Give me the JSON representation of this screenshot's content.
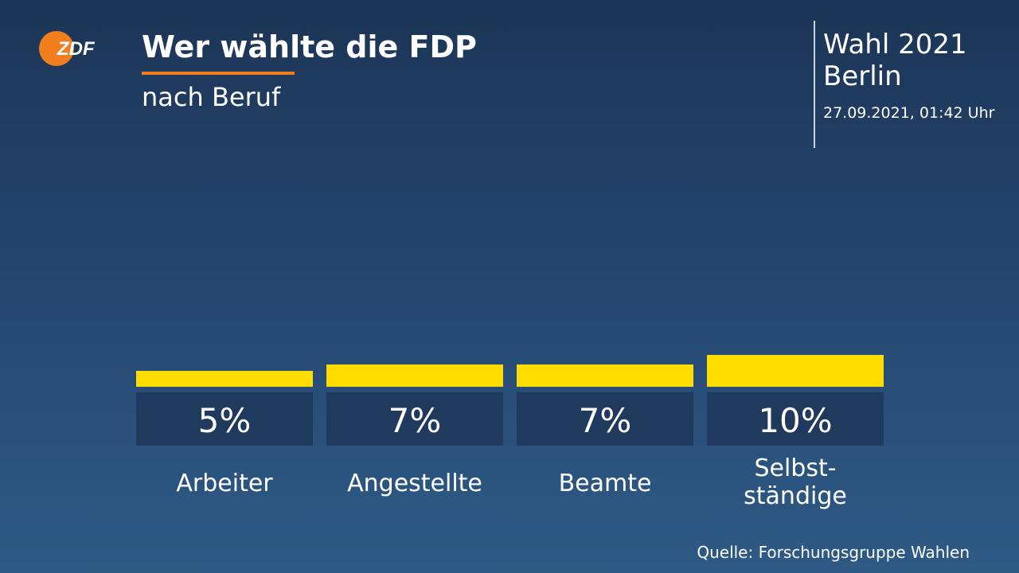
{
  "header": {
    "title": "Wer wählte die FDP",
    "subtitle": "nach Beruf"
  },
  "meta": {
    "election": "Wahl 2021",
    "region": "Berlin",
    "timestamp": "27.09.2021, 01:42 Uhr"
  },
  "logo": {
    "text": "ZDF",
    "color": "#f07d1e"
  },
  "colors": {
    "bar": "#ffdd00",
    "label_box": "#1f3a5c",
    "accent": "#f07d1e"
  },
  "chart_data": {
    "type": "bar",
    "categories": [
      "Arbeiter",
      "Angestellte",
      "Beamte",
      "Selbst-\nständige"
    ],
    "values": [
      5,
      7,
      7,
      10
    ],
    "value_labels": [
      "5%",
      "7%",
      "7%",
      "10%"
    ],
    "unit": "%",
    "title": "Wer wählte die FDP",
    "subtitle": "nach Beruf",
    "xlabel": "",
    "ylabel": "",
    "grid": false,
    "legend": "none"
  },
  "footer": {
    "source": "Quelle: Forschungsgruppe Wahlen"
  }
}
